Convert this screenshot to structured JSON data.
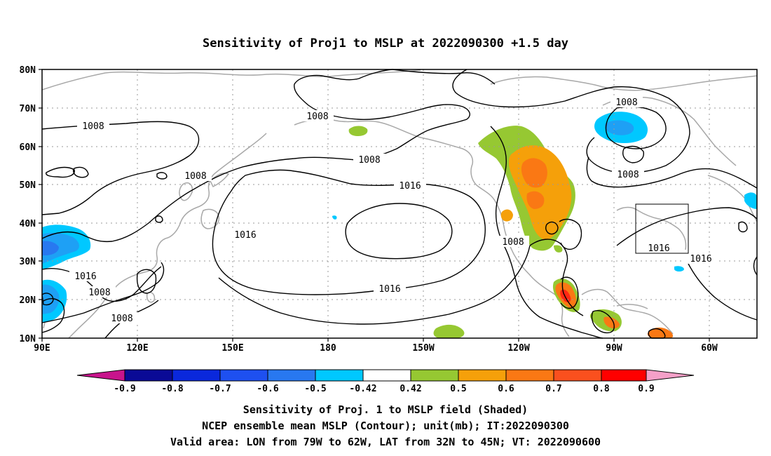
{
  "title": "Sensitivity of Proj1 to MSLP at 2022090300 +1.5 day",
  "lat_labels": [
    "80N",
    "70N",
    "60N",
    "50N",
    "40N",
    "30N",
    "20N",
    "10N"
  ],
  "lon_labels": [
    "90E",
    "120E",
    "150E",
    "180",
    "150W",
    "120W",
    "90W",
    "60W"
  ],
  "contour_labels": {
    "c1": "1008",
    "c2": "1008",
    "c3": "1008",
    "c4": "1008",
    "c5": "1008",
    "c6": "1016",
    "c7": "1016",
    "c8": "1016",
    "c9": "1008",
    "c10": "1016",
    "c11": "1008",
    "c12": "1008",
    "c13": "1016",
    "c14": "1016"
  },
  "colorbar": {
    "labels": [
      "-0.9",
      "-0.8",
      "-0.7",
      "-0.6",
      "-0.5",
      "-0.42",
      "0.42",
      "0.5",
      "0.6",
      "0.7",
      "0.8",
      "0.9"
    ],
    "colors": {
      "end_low": "#c8148c",
      "c_m09": "#0a0a96",
      "c_m08": "#0a28dc",
      "c_m07": "#1e50f0",
      "c_m06": "#2878f0",
      "c_m05": "#1ea0f5",
      "c_m042": "#00c8ff",
      "neutral": "#ffffff",
      "c_p042": "#96c832",
      "c_p05": "#f5a00a",
      "c_p06": "#fa7814",
      "c_p07": "#fa501e",
      "c_p08": "#ff2814",
      "c_p09": "#ff0000",
      "end_high": "#f5a0c8"
    }
  },
  "captions": {
    "line1": "Sensitivity of Proj. 1 to MSLP field (Shaded)",
    "line2": "NCEP ensemble mean MSLP (Contour); unit(mb); IT:2022090300",
    "line3": "Valid area: LON from 79W to 62W, LAT from 32N to 45N; VT: 2022090600"
  }
}
